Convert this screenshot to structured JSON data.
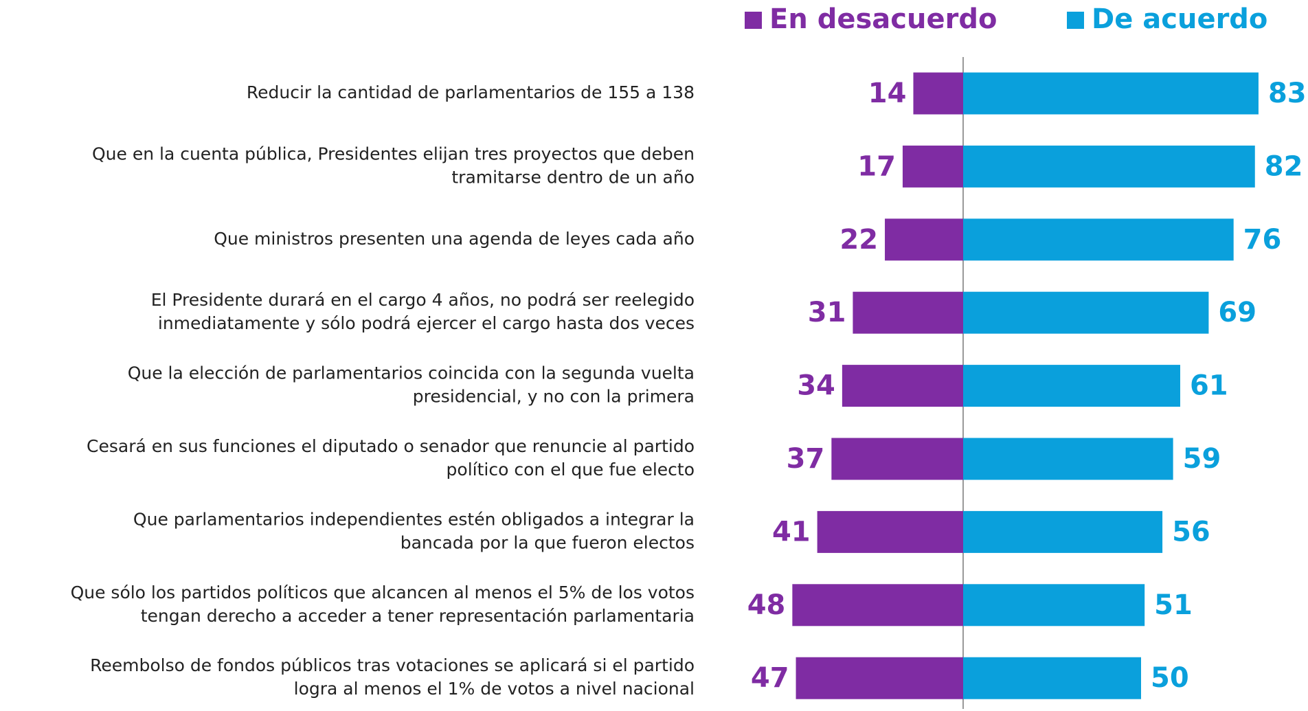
{
  "chart_data": {
    "type": "diverging-bar",
    "orientation": "horizontal",
    "categories": [
      [
        "Reducir la cantidad de parlamentarios de 155 a 138"
      ],
      [
        "Que en la cuenta pública, Presidentes elijan tres proyectos que deben",
        "tramitarse dentro de un año"
      ],
      [
        "Que ministros presenten una agenda de leyes cada año"
      ],
      [
        "El Presidente durará en el cargo 4 años, no podrá ser reelegido",
        "inmediatamente y sólo podrá ejercer el cargo hasta dos veces"
      ],
      [
        "Que la elección de parlamentarios coincida con la segunda vuelta",
        "presidencial, y no con la primera"
      ],
      [
        "Cesará en sus funciones el diputado o senador que renuncie al partido",
        "político con el que fue electo"
      ],
      [
        "Que parlamentarios independientes estén obligados a integrar la",
        "bancada por la que fueron electos"
      ],
      [
        "Que sólo los partidos políticos que alcancen al menos el 5% de los votos",
        "tengan derecho a acceder a tener representación parlamentaria"
      ],
      [
        "Reembolso de fondos públicos tras votaciones se aplicará si el partido",
        "logra al menos el 1% de votos a nivel nacional"
      ]
    ],
    "series": [
      {
        "name": "En desacuerdo",
        "color": "#7f2ca3",
        "side": "left",
        "values": [
          14,
          17,
          22,
          31,
          34,
          37,
          41,
          48,
          47
        ]
      },
      {
        "name": "De acuerdo",
        "color": "#0aa0dc",
        "side": "right",
        "values": [
          83,
          82,
          76,
          69,
          61,
          59,
          56,
          51,
          50
        ]
      }
    ],
    "legend": "top-right"
  }
}
